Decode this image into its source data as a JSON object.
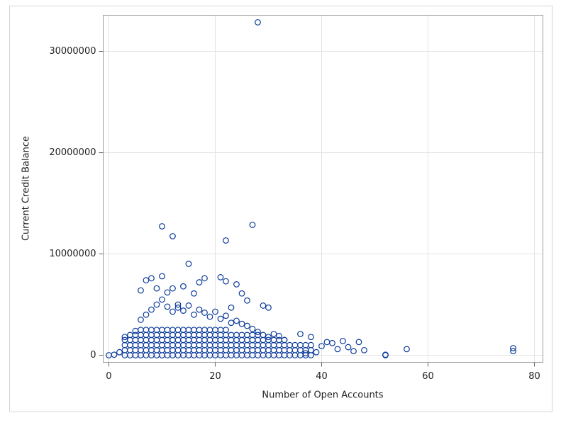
{
  "chart_data": {
    "type": "scatter",
    "x_label": "Number of Open Accounts",
    "y_label": "Current Credit Balance",
    "color": "#0b3a9b",
    "grid": true,
    "xlim": [
      -1.06,
      81.6
    ],
    "ylim": [
      -700000,
      33570000
    ],
    "xticks": [
      0,
      20,
      40,
      60,
      80
    ],
    "yticks": [
      0,
      10000000,
      20000000,
      30000000
    ],
    "x": [
      3,
      3,
      3,
      3,
      4,
      4,
      4,
      4,
      4,
      5,
      5,
      5,
      5,
      5,
      6,
      6,
      6,
      6,
      6,
      6,
      7,
      7,
      7,
      7,
      7,
      7,
      8,
      8,
      8,
      8,
      8,
      8,
      9,
      9,
      9,
      9,
      9,
      9,
      10,
      10,
      10,
      10,
      10,
      10,
      11,
      11,
      11,
      11,
      11,
      11,
      12,
      12,
      12,
      12,
      12,
      12,
      13,
      13,
      13,
      13,
      13,
      13,
      14,
      14,
      14,
      14,
      14,
      14,
      15,
      15,
      15,
      15,
      15,
      15,
      16,
      16,
      16,
      16,
      16,
      16,
      17,
      17,
      17,
      17,
      17,
      17,
      18,
      18,
      18,
      18,
      18,
      18,
      19,
      19,
      19,
      19,
      19,
      19,
      20,
      20,
      20,
      20,
      20,
      20,
      21,
      21,
      21,
      21,
      21,
      21,
      22,
      22,
      22,
      22,
      22,
      22,
      23,
      23,
      23,
      23,
      23,
      24,
      24,
      24,
      24,
      24,
      25,
      25,
      25,
      25,
      25,
      26,
      26,
      26,
      26,
      26,
      27,
      27,
      27,
      27,
      27,
      28,
      28,
      28,
      28,
      28,
      29,
      29,
      29,
      29,
      30,
      30,
      30,
      30,
      31,
      31,
      31,
      31,
      32,
      32,
      32,
      32,
      33,
      33,
      33,
      33,
      34,
      34,
      34,
      35,
      35,
      35,
      36,
      36,
      36,
      37,
      37,
      37,
      38,
      38,
      38,
      0,
      1,
      2,
      3,
      5,
      6,
      7,
      8,
      9,
      10,
      11,
      12,
      13,
      14,
      15,
      16,
      17,
      18,
      19,
      20,
      21,
      22,
      23,
      24,
      25,
      26,
      27,
      28,
      29,
      30,
      31,
      32,
      33,
      36,
      38,
      37,
      39,
      40,
      41,
      42,
      43,
      44,
      45,
      46,
      47,
      48,
      52,
      52,
      56,
      76,
      76,
      6,
      7,
      8,
      9,
      10,
      11,
      12,
      13,
      14,
      15,
      16,
      17,
      18,
      21,
      22,
      23,
      24,
      25,
      26,
      29,
      30,
      10,
      12,
      22,
      27,
      28
    ],
    "values": [
      0,
      500000,
      1000000,
      1500000,
      0,
      500000,
      1000000,
      1500000,
      2000000,
      0,
      500000,
      1000000,
      1500000,
      2000000,
      0,
      500000,
      1000000,
      1500000,
      2000000,
      2500000,
      0,
      500000,
      1000000,
      1500000,
      2000000,
      2500000,
      0,
      500000,
      1000000,
      1500000,
      2000000,
      2500000,
      0,
      500000,
      1000000,
      1500000,
      2000000,
      2500000,
      0,
      500000,
      1000000,
      1500000,
      2000000,
      2500000,
      0,
      500000,
      1000000,
      1500000,
      2000000,
      2500000,
      0,
      500000,
      1000000,
      1500000,
      2000000,
      2500000,
      0,
      500000,
      1000000,
      1500000,
      2000000,
      2500000,
      0,
      500000,
      1000000,
      1500000,
      2000000,
      2500000,
      0,
      500000,
      1000000,
      1500000,
      2000000,
      2500000,
      0,
      500000,
      1000000,
      1500000,
      2000000,
      2500000,
      0,
      500000,
      1000000,
      1500000,
      2000000,
      2500000,
      0,
      500000,
      1000000,
      1500000,
      2000000,
      2500000,
      0,
      500000,
      1000000,
      1500000,
      2000000,
      2500000,
      0,
      500000,
      1000000,
      1500000,
      2000000,
      2500000,
      0,
      500000,
      1000000,
      1500000,
      2000000,
      2500000,
      0,
      500000,
      1000000,
      1500000,
      2000000,
      2500000,
      0,
      500000,
      1000000,
      1500000,
      2000000,
      0,
      500000,
      1000000,
      1500000,
      2000000,
      0,
      500000,
      1000000,
      1500000,
      2000000,
      0,
      500000,
      1000000,
      1500000,
      2000000,
      0,
      500000,
      1000000,
      1500000,
      2000000,
      0,
      500000,
      1000000,
      1500000,
      2000000,
      0,
      500000,
      1000000,
      1500000,
      0,
      500000,
      1000000,
      1500000,
      0,
      500000,
      1000000,
      1500000,
      0,
      500000,
      1000000,
      1500000,
      0,
      500000,
      1000000,
      1500000,
      0,
      500000,
      1000000,
      0,
      500000,
      1000000,
      0,
      500000,
      1000000,
      0,
      500000,
      1000000,
      0,
      500000,
      1000000,
      0,
      50000,
      300000,
      1800000,
      2400000,
      3500000,
      4000000,
      4500000,
      5000000,
      5500000,
      4800000,
      4300000,
      4700000,
      4400000,
      4900000,
      4000000,
      4500000,
      4200000,
      3800000,
      4300000,
      3600000,
      3900000,
      3200000,
      3400000,
      3100000,
      2900000,
      2600000,
      2300000,
      2000000,
      1800000,
      2100000,
      1900000,
      1500000,
      2100000,
      1800000,
      200000,
      300000,
      900000,
      1300000,
      1200000,
      600000,
      1400000,
      800000,
      400000,
      1300000,
      500000,
      50000,
      0,
      600000,
      700000,
      400000,
      6400000,
      7400000,
      7600000,
      6600000,
      7800000,
      6200000,
      6600000,
      5000000,
      6800000,
      9020000,
      6100000,
      7200000,
      7600000,
      7700000,
      7300000,
      4700000,
      7000000,
      6100000,
      5400000,
      4900000,
      4700000,
      12730000,
      11750000,
      11330000,
      12870000,
      32870000
    ]
  }
}
